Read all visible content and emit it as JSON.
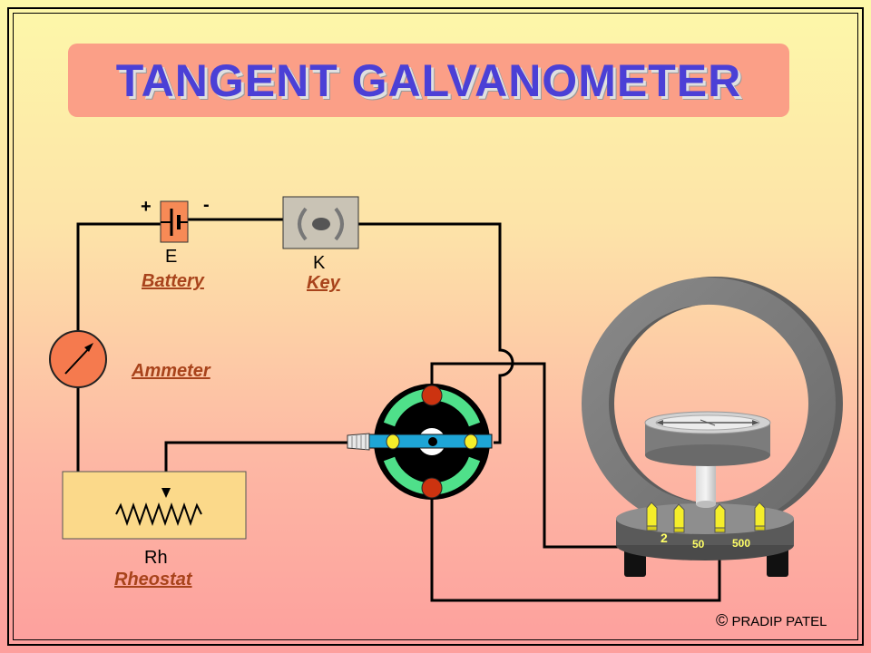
{
  "title": "TANGENT GALVANOMETER",
  "battery": {
    "symbol": "E",
    "name": "Battery",
    "plus": "+",
    "minus": "-"
  },
  "key": {
    "symbol": "K",
    "name": "Key"
  },
  "ammeter": {
    "name": "Ammeter"
  },
  "rheostat": {
    "symbol": "Rh",
    "name": "Rheostat"
  },
  "galvanometer": {
    "terminals": [
      "2",
      "50",
      "500"
    ]
  },
  "credit": {
    "symbol": "©",
    "author": "PRADIP PATEL"
  }
}
